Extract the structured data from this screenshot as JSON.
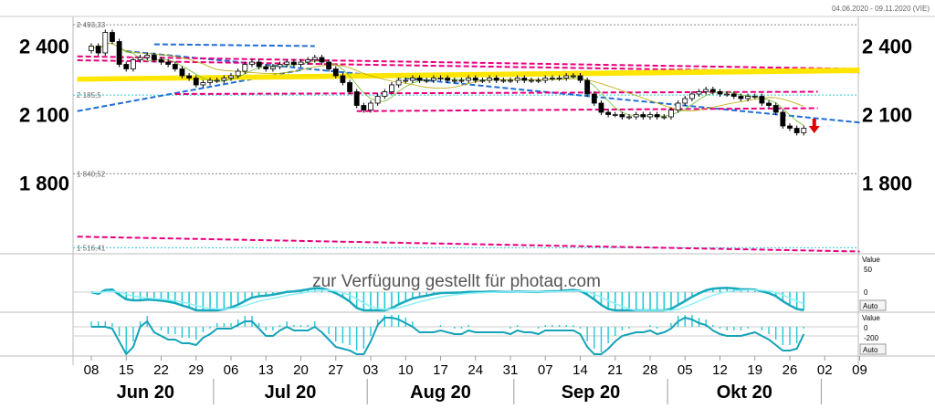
{
  "header": {
    "date_range": "04.06.2020 - 09.11.2020 (VIE)"
  },
  "watermark": "zur Verfügung gestellt für photaq.com",
  "chart_data": {
    "type": "candlestick",
    "y_ticks": [
      "2 400",
      "2 100",
      "1 800"
    ],
    "y_tick_values": [
      2400,
      2100,
      1800
    ],
    "ylim": [
      1490,
      2530
    ],
    "reference_levels": [
      {
        "label": "2 493,33",
        "value": 2493.33
      },
      {
        "label": "2 185,5",
        "value": 2185.5
      },
      {
        "label": "1 840,52",
        "value": 1840.52
      },
      {
        "label": "1 516,41",
        "value": 1516.41
      }
    ],
    "x_tick_labels": [
      "08",
      "15",
      "22",
      "29",
      "06",
      "13",
      "20",
      "27",
      "03",
      "10",
      "17",
      "24",
      "31",
      "07",
      "14",
      "21",
      "28",
      "05",
      "12",
      "19",
      "26",
      "02",
      "09"
    ],
    "x_tick_day_index": [
      0,
      5,
      10,
      15,
      20,
      25,
      30,
      35,
      40,
      45,
      50,
      55,
      60,
      65,
      70,
      75,
      80,
      85,
      90,
      95,
      100,
      105,
      110
    ],
    "months": [
      {
        "label": "Jun 20",
        "start": -2,
        "end": 17.5
      },
      {
        "label": "Jul 20",
        "start": 17.5,
        "end": 39.5
      },
      {
        "label": "Aug 20",
        "start": 39.5,
        "end": 60.5
      },
      {
        "label": "Sep 20",
        "start": 60.5,
        "end": 82.5
      },
      {
        "label": "Okt 20",
        "start": 82.5,
        "end": 104.5
      }
    ],
    "closes": [
      2400,
      2370,
      2460,
      2420,
      2320,
      2300,
      2340,
      2350,
      2360,
      2340,
      2330,
      2320,
      2300,
      2270,
      2260,
      2230,
      2240,
      2250,
      2250,
      2260,
      2270,
      2290,
      2320,
      2330,
      2310,
      2300,
      2310,
      2320,
      2330,
      2320,
      2330,
      2340,
      2350,
      2330,
      2300,
      2270,
      2240,
      2200,
      2140,
      2120,
      2150,
      2180,
      2200,
      2230,
      2250,
      2250,
      2260,
      2250,
      2250,
      2260,
      2260,
      2250,
      2250,
      2250,
      2260,
      2250,
      2250,
      2260,
      2250,
      2250,
      2250,
      2260,
      2250,
      2250,
      2250,
      2260,
      2260,
      2260,
      2270,
      2270,
      2250,
      2190,
      2150,
      2110,
      2100,
      2100,
      2090,
      2090,
      2100,
      2090,
      2100,
      2090,
      2090,
      2120,
      2150,
      2170,
      2190,
      2200,
      2210,
      2200,
      2190,
      2190,
      2180,
      2170,
      2180,
      2180,
      2150,
      2140,
      2110,
      2050,
      2040,
      2020,
      2040
    ],
    "trendlines": [
      {
        "color": "#1f6fd8",
        "style": "dashed",
        "from": [
          -2,
          2115
        ],
        "to": [
          30,
          2295
        ]
      },
      {
        "color": "#1f6fd8",
        "style": "dashed",
        "from": [
          5,
          2378
        ],
        "to": [
          110,
          2065
        ]
      },
      {
        "color": "#1f6fd8",
        "style": "dashed",
        "from": [
          9,
          2408
        ],
        "to": [
          32,
          2400
        ]
      },
      {
        "color": "#e6007e",
        "style": "dashed",
        "from": [
          -2,
          2355
        ],
        "to": [
          110,
          2300
        ]
      },
      {
        "color": "#e6007e",
        "style": "dashed",
        "from": [
          -2,
          2338
        ],
        "to": [
          110,
          2285
        ]
      },
      {
        "color": "#e6007e",
        "style": "dashed",
        "from": [
          -2,
          1565
        ],
        "to": [
          110,
          1500
        ]
      },
      {
        "color": "#e6007e",
        "style": "dashed",
        "from": [
          38,
          2115
        ],
        "to": [
          104,
          2128
        ]
      },
      {
        "color": "#e6007e",
        "style": "dashed",
        "from": [
          12,
          2190
        ],
        "to": [
          104,
          2200
        ]
      },
      {
        "color": "#ffe600",
        "style": "solid",
        "from": [
          -2,
          2250
        ],
        "to": [
          110,
          2288
        ]
      },
      {
        "color": "#ffe600",
        "style": "solid",
        "from": [
          -2,
          2260
        ],
        "to": [
          110,
          2300
        ]
      },
      {
        "color": "#ffe600",
        "style": "solid",
        "from": [
          -2,
          2258
        ],
        "to": [
          110,
          2298
        ]
      }
    ],
    "signal_arrow": {
      "color": "#e00000",
      "direction": "down",
      "day": 103.5
    },
    "indicators": [
      {
        "value_label": "Value",
        "ticks": [
          "50",
          "0"
        ],
        "auto_label": "Auto",
        "color": "#1ec9d8"
      },
      {
        "value_label": "Value",
        "ticks": [
          "0",
          "-200"
        ],
        "auto_label": "Auto",
        "color": "#1ec9d8"
      }
    ]
  }
}
